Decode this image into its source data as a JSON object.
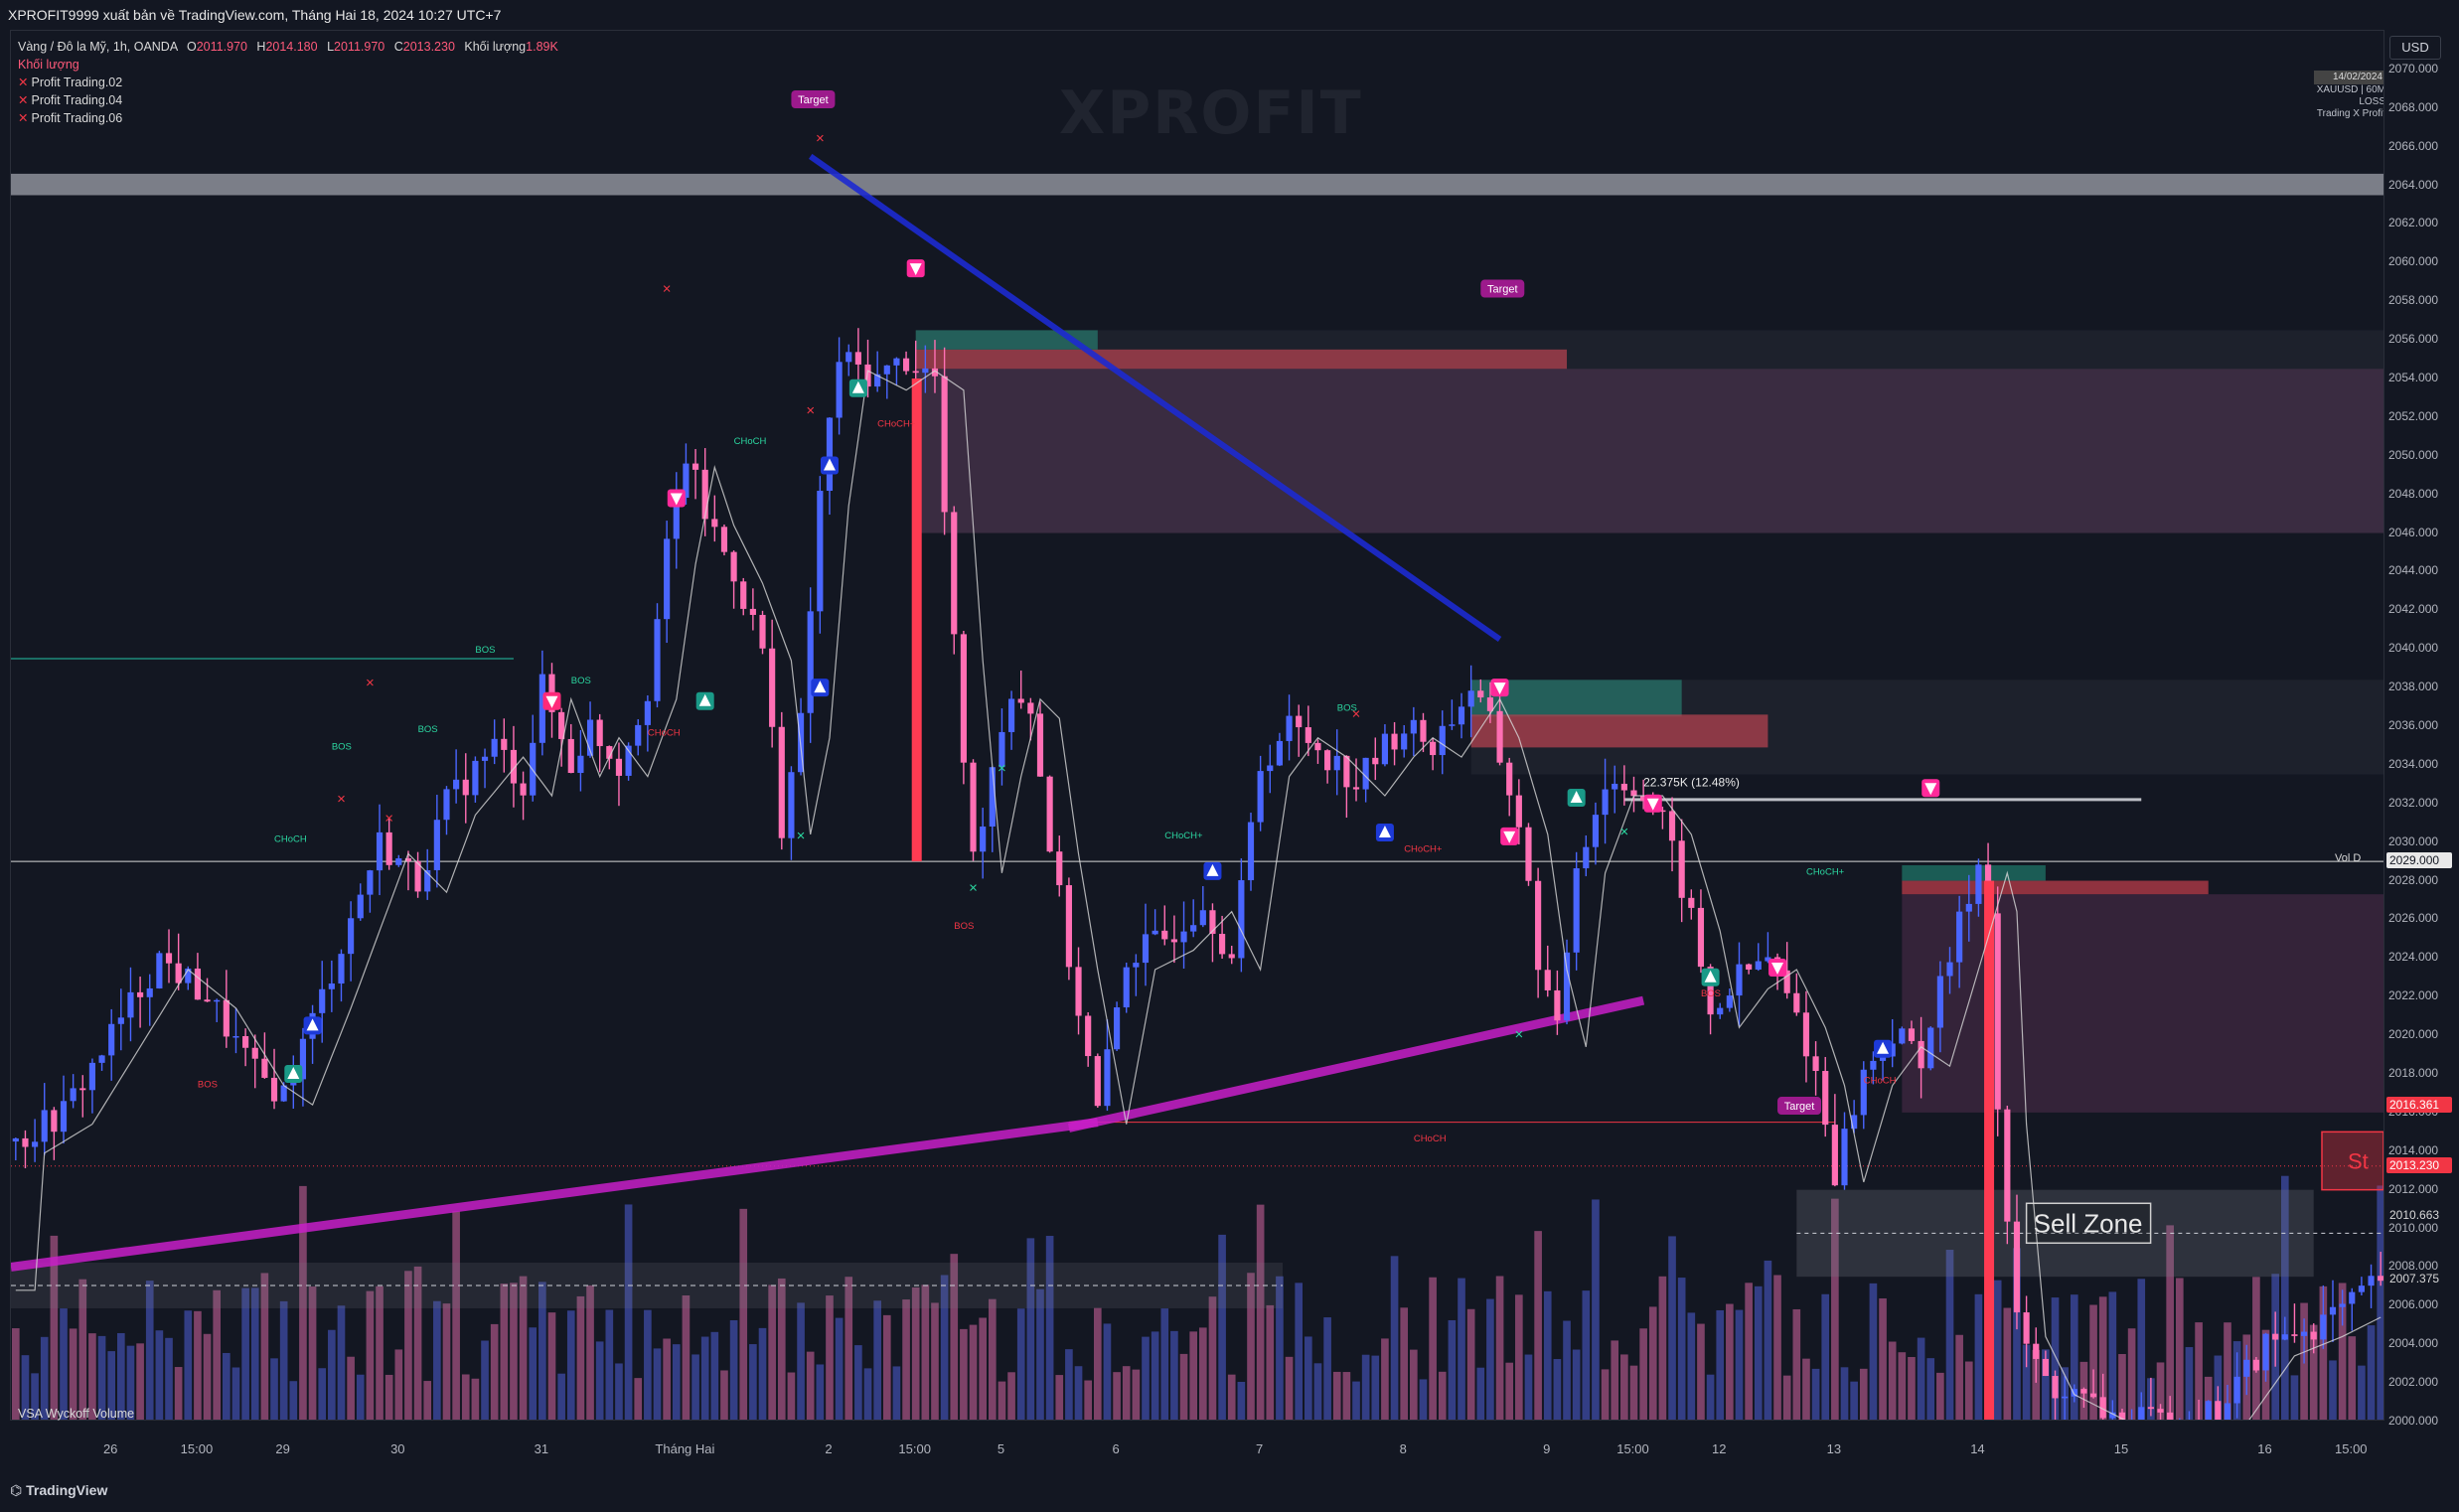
{
  "publisher_line": "XPROFIT9999 xuất bản về TradingView.com, Tháng Hai 18, 2024 10:27 UTC+7",
  "legend": {
    "symbol": "Vàng / Đô la Mỹ, 1h, OANDA",
    "ohlc": [
      {
        "k": "O",
        "v": "2011.970"
      },
      {
        "k": "H",
        "v": "2014.180"
      },
      {
        "k": "L",
        "v": "2011.970"
      },
      {
        "k": "C",
        "v": "2013.230"
      }
    ],
    "volume_label": "Khối lượng",
    "volume_value": "1.89K",
    "volume_row": "Khối lượng",
    "indicators": [
      "Profit Trading.02",
      "Profit Trading.04",
      "Profit Trading.06"
    ]
  },
  "watermark": "XPROFIT",
  "top_right_box": {
    "header": "14/02/2024",
    "lines": [
      "XAUUSD | 60M",
      "LOSS",
      "Trading X Profit"
    ]
  },
  "currency_button": "USD",
  "vsa_label": "VSA Wyckoff Volume",
  "footer_brand": "TradingView",
  "colors": {
    "background": "#131722",
    "bull": "#4a66ff",
    "bear": "#ff6fb4",
    "demand_zone": "#1e6e63",
    "supply_zone": "#b23a48",
    "magenta_trend": "#c81ec8",
    "blue_trend": "#1d2ad0",
    "price_label": "#f23645"
  },
  "chart_data": {
    "type": "candlestick",
    "title": "Vàng / Đô la Mỹ, 1h, OANDA",
    "symbol": "XAUUSD",
    "timeframe": "1h",
    "ylim": [
      2000,
      2072
    ],
    "y_ticks": [
      2000,
      2002,
      2004,
      2006,
      2008,
      2010,
      2012,
      2014,
      2016,
      2018,
      2020,
      2022,
      2024,
      2026,
      2028,
      2030,
      2032,
      2034,
      2036,
      2038,
      2040,
      2042,
      2044,
      2046,
      2048,
      2050,
      2052,
      2054,
      2056,
      2058,
      2060,
      2062,
      2064,
      2066,
      2068,
      2070
    ],
    "y_tick_labels": [
      "2000.000",
      "2002.000",
      "2004.000",
      "2006.000",
      "2008.000",
      "2010.000",
      "2012.000",
      "2014.000",
      "2016.000",
      "2018.000",
      "2020.000",
      "2022.000",
      "2024.000",
      "2026.000",
      "2028.000",
      "2030.000",
      "2032.000",
      "2034.000",
      "2036.000",
      "2038.000",
      "2040.000",
      "2042.000",
      "2044.000",
      "2046.000",
      "2048.000",
      "2050.000",
      "2052.000",
      "2054.000",
      "2056.000",
      "2058.000",
      "2060.000",
      "2062.000",
      "2064.000",
      "2066.000",
      "2068.000",
      "2070.000"
    ],
    "x_ticks": [
      {
        "label": "26",
        "idx": 10
      },
      {
        "label": "15:00",
        "idx": 19
      },
      {
        "label": "29",
        "idx": 28
      },
      {
        "label": "30",
        "idx": 40
      },
      {
        "label": "31",
        "idx": 55
      },
      {
        "label": "Tháng Hai",
        "idx": 70
      },
      {
        "label": "2",
        "idx": 85
      },
      {
        "label": "15:00",
        "idx": 94
      },
      {
        "label": "5",
        "idx": 103
      },
      {
        "label": "6",
        "idx": 115
      },
      {
        "label": "7",
        "idx": 130
      },
      {
        "label": "8",
        "idx": 145
      },
      {
        "label": "9",
        "idx": 160
      },
      {
        "label": "15:00",
        "idx": 169
      },
      {
        "label": "12",
        "idx": 178
      },
      {
        "label": "13",
        "idx": 190
      },
      {
        "label": "14",
        "idx": 205
      },
      {
        "label": "15",
        "idx": 220
      },
      {
        "label": "16",
        "idx": 235
      },
      {
        "label": "15:00",
        "idx": 244
      }
    ],
    "n_bars": 248,
    "path_points": [
      [
        0,
        2014.5
      ],
      [
        5,
        2016
      ],
      [
        10,
        2020
      ],
      [
        15,
        2024
      ],
      [
        20,
        2022
      ],
      [
        25,
        2018
      ],
      [
        28,
        2017
      ],
      [
        32,
        2022
      ],
      [
        35,
        2026
      ],
      [
        38,
        2030
      ],
      [
        42,
        2028
      ],
      [
        45,
        2032
      ],
      [
        50,
        2035
      ],
      [
        53,
        2033
      ],
      [
        55,
        2038
      ],
      [
        58,
        2034
      ],
      [
        60,
        2036
      ],
      [
        63,
        2034
      ],
      [
        66,
        2038
      ],
      [
        68,
        2045
      ],
      [
        70,
        2050
      ],
      [
        72,
        2047
      ],
      [
        75,
        2044
      ],
      [
        78,
        2040
      ],
      [
        80,
        2031
      ],
      [
        82,
        2036
      ],
      [
        84,
        2048
      ],
      [
        86,
        2055
      ],
      [
        90,
        2054
      ],
      [
        93,
        2055
      ],
      [
        96,
        2054
      ],
      [
        98,
        2040
      ],
      [
        100,
        2029
      ],
      [
        102,
        2034
      ],
      [
        104,
        2038
      ],
      [
        106,
        2037
      ],
      [
        108,
        2030
      ],
      [
        110,
        2024
      ],
      [
        113,
        2016
      ],
      [
        116,
        2024
      ],
      [
        120,
        2025
      ],
      [
        124,
        2027
      ],
      [
        127,
        2024
      ],
      [
        130,
        2034
      ],
      [
        133,
        2036
      ],
      [
        136,
        2035
      ],
      [
        140,
        2033
      ],
      [
        143,
        2035
      ],
      [
        145,
        2036
      ],
      [
        148,
        2035
      ],
      [
        152,
        2038
      ],
      [
        154,
        2036
      ],
      [
        157,
        2031
      ],
      [
        159,
        2024
      ],
      [
        161,
        2020
      ],
      [
        163,
        2029
      ],
      [
        166,
        2033
      ],
      [
        169,
        2033
      ],
      [
        172,
        2031
      ],
      [
        175,
        2026
      ],
      [
        177,
        2021
      ],
      [
        180,
        2023
      ],
      [
        183,
        2024
      ],
      [
        186,
        2021
      ],
      [
        188,
        2018
      ],
      [
        190,
        2013
      ],
      [
        193,
        2018
      ],
      [
        196,
        2020
      ],
      [
        199,
        2019
      ],
      [
        202,
        2024
      ],
      [
        205,
        2029
      ],
      [
        206,
        2027
      ],
      [
        207,
        2016
      ],
      [
        209,
        2005
      ],
      [
        212,
        2002
      ],
      [
        216,
        2001
      ],
      [
        220,
        2000
      ],
      [
        225,
        2000
      ],
      [
        230,
        2000.5
      ],
      [
        235,
        2004
      ],
      [
        240,
        2005
      ],
      [
        244,
        2006
      ],
      [
        247,
        2007.4
      ]
    ],
    "markers": {
      "last_price": "2013.230",
      "vol_d_level": "2029.000",
      "price_label_red": "2016.361",
      "level_2010": "2010.663",
      "level_2007": "2007.375"
    },
    "annotations": {
      "target_labels": [
        "Target",
        "Target",
        "Target"
      ],
      "sell_zone": "Sell Zone",
      "range_measure": "22.375K (12.48%)",
      "vol_d": "Vol D",
      "choch": "CHoCH",
      "choch_plus": "CHoCH+",
      "bos": "BOS",
      "partial_label": "St"
    },
    "zones": [
      {
        "type": "supply",
        "from_idx": 94,
        "to_idx": 162,
        "y": [
          2054.5,
          2055.5
        ]
      },
      {
        "type": "demand",
        "from_idx": 94,
        "to_idx": 113,
        "y": [
          2055.5,
          2056.5
        ]
      },
      {
        "type": "supply_area",
        "from_idx": 94,
        "to_idx": 248,
        "y": [
          2046,
          2054.5
        ]
      },
      {
        "type": "demand",
        "from_idx": 152,
        "to_idx": 174,
        "y": [
          2036.5,
          2038.4
        ]
      },
      {
        "type": "supply",
        "from_idx": 152,
        "to_idx": 183,
        "y": [
          2034.9,
          2036.6
        ]
      },
      {
        "type": "demand",
        "from_idx": 197,
        "to_idx": 212,
        "y": [
          2028,
          2028.8
        ]
      },
      {
        "type": "supply",
        "from_idx": 197,
        "to_idx": 229,
        "y": [
          2027.3,
          2028
        ]
      },
      {
        "type": "supply_area",
        "from_idx": 197,
        "to_idx": 248,
        "y": [
          2016,
          2027.3
        ]
      }
    ]
  }
}
